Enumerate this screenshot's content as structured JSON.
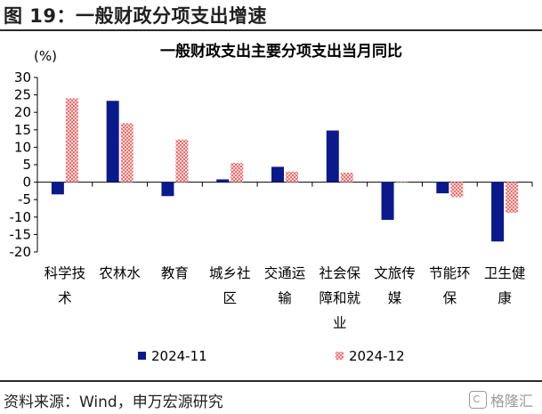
{
  "figure_title": "图 19：一般财政分项支出增速",
  "source": "资料来源：Wind，申万宏源研究",
  "watermark": "格隆汇",
  "colors": {
    "series1": "#0a1a8c",
    "series2": "#f07d7d",
    "title_rule": "#2a2a2a"
  },
  "chart_data": {
    "type": "bar",
    "title": "一般财政支出主要分项支出当月同比",
    "unit_label": "(%)",
    "ylim": [
      -20,
      30
    ],
    "yticks": [
      30,
      25,
      20,
      15,
      10,
      5,
      0,
      -5,
      -10,
      -15,
      -20
    ],
    "grid": false,
    "legend": "bottom",
    "categories": [
      [
        "科学技",
        "术"
      ],
      [
        "农林水"
      ],
      [
        "教育"
      ],
      [
        "城乡社",
        "区"
      ],
      [
        "交通运",
        "输"
      ],
      [
        "社会保",
        "障和就",
        "业"
      ],
      [
        "文旅传",
        "媒"
      ],
      [
        "节能环",
        "保"
      ],
      [
        "卫生健",
        "康"
      ]
    ],
    "series": [
      {
        "name": "2024-11",
        "values": [
          -3.5,
          23.3,
          -4.0,
          0.8,
          4.4,
          14.8,
          -10.8,
          -3.2,
          -17.0
        ]
      },
      {
        "name": "2024-12",
        "values": [
          24.0,
          16.9,
          12.2,
          5.5,
          3.0,
          2.7,
          0.2,
          -4.3,
          -8.8
        ]
      }
    ]
  }
}
